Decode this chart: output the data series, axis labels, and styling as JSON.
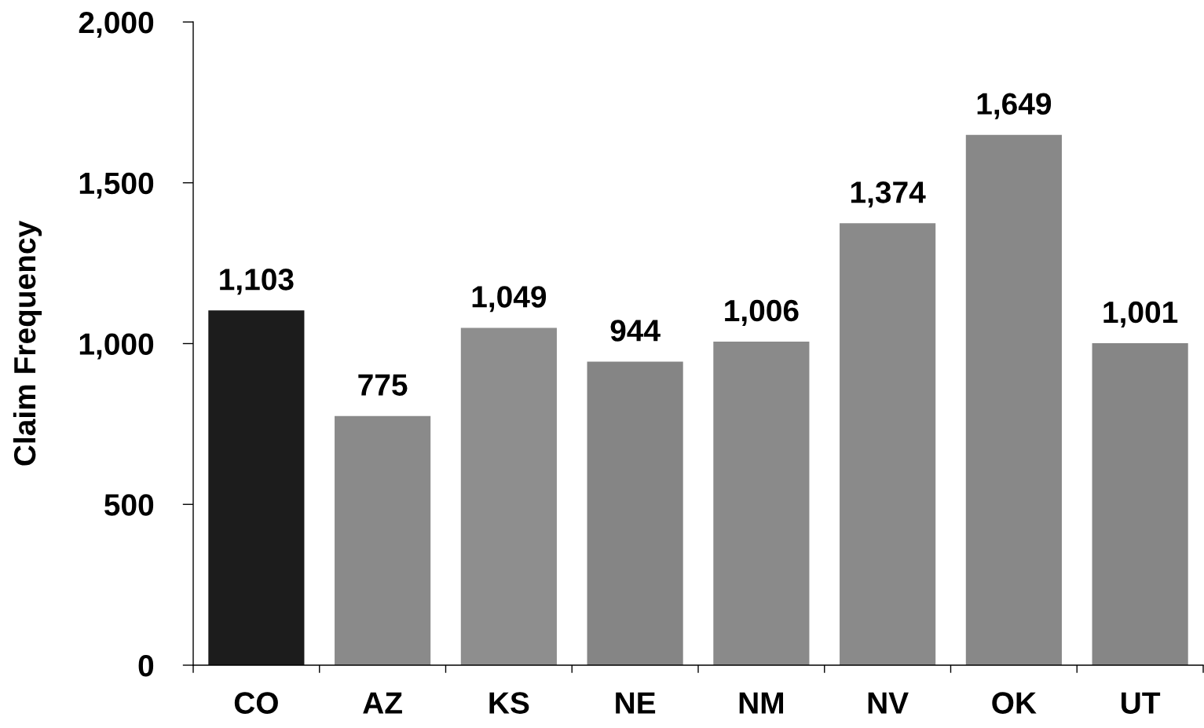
{
  "chart_data": {
    "type": "bar",
    "ylabel": "Claim Frequency",
    "categories": [
      "CO",
      "AZ",
      "KS",
      "NE",
      "NM",
      "NV",
      "OK",
      "UT"
    ],
    "values": [
      1103,
      775,
      1049,
      944,
      1006,
      1374,
      1649,
      1001
    ],
    "colors": [
      "#1c1c1c",
      "#8a8a8a",
      "#8e8e8e",
      "#858585",
      "#8a8a8a",
      "#8a8a8a",
      "#888888",
      "#868686"
    ],
    "value_labels": [
      "1,103",
      "775",
      "1,049",
      "944",
      "1,006",
      "1,374",
      "1,649",
      "1,001"
    ],
    "ylim": [
      0,
      2000
    ],
    "yticks": [
      0,
      500,
      {
        "value": 1000,
        "label": "1,000"
      },
      {
        "value": 1500,
        "label": "1,500"
      },
      {
        "value": 2000,
        "label": "2,000"
      }
    ]
  }
}
